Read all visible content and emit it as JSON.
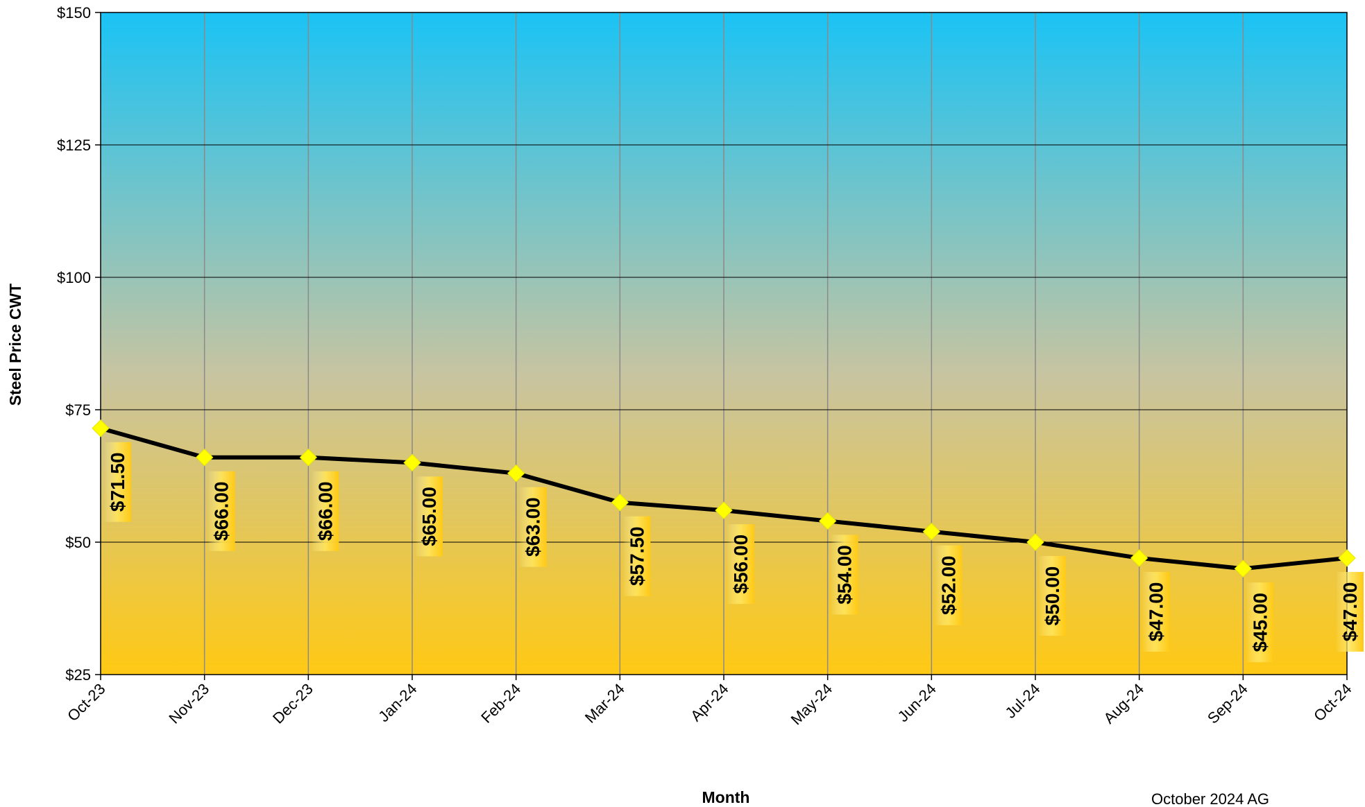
{
  "chart_data": {
    "type": "line",
    "title": "",
    "xlabel": "Month",
    "ylabel": "Steel Price CWT",
    "ylim": [
      25,
      150
    ],
    "yticks": [
      25,
      50,
      75,
      100,
      125,
      150
    ],
    "ytick_labels": [
      "$25",
      "$50",
      "$75",
      "$100",
      "$125",
      "$150"
    ],
    "categories": [
      "Oct-23",
      "Nov-23",
      "Dec-23",
      "Jan-24",
      "Feb-24",
      "Mar-24",
      "Apr-24",
      "May-24",
      "Jun-24",
      "Jul-24",
      "Aug-24",
      "Sep-24",
      "Oct-24"
    ],
    "series": [
      {
        "values": [
          71.5,
          66,
          66,
          65,
          63,
          57.5,
          56,
          54,
          52,
          50,
          47,
          45,
          47
        ],
        "labels": [
          "$71.50",
          "$66.00",
          "$66.00",
          "$65.00",
          "$63.00",
          "$57.50",
          "$56.00",
          "$54.00",
          "$52.00",
          "$50.00",
          "$47.00",
          "$45.00",
          "$47.00"
        ],
        "line_color": "#000000",
        "marker_color": "#FFFF00"
      }
    ],
    "grid": true,
    "legend": "none",
    "background_gradient": {
      "top": "#1AC3F5",
      "mid": "#C8C4A0",
      "bottom": "#FFC914"
    },
    "label_box_color": "#FFE45A"
  },
  "footnote": "October 2024 AG"
}
